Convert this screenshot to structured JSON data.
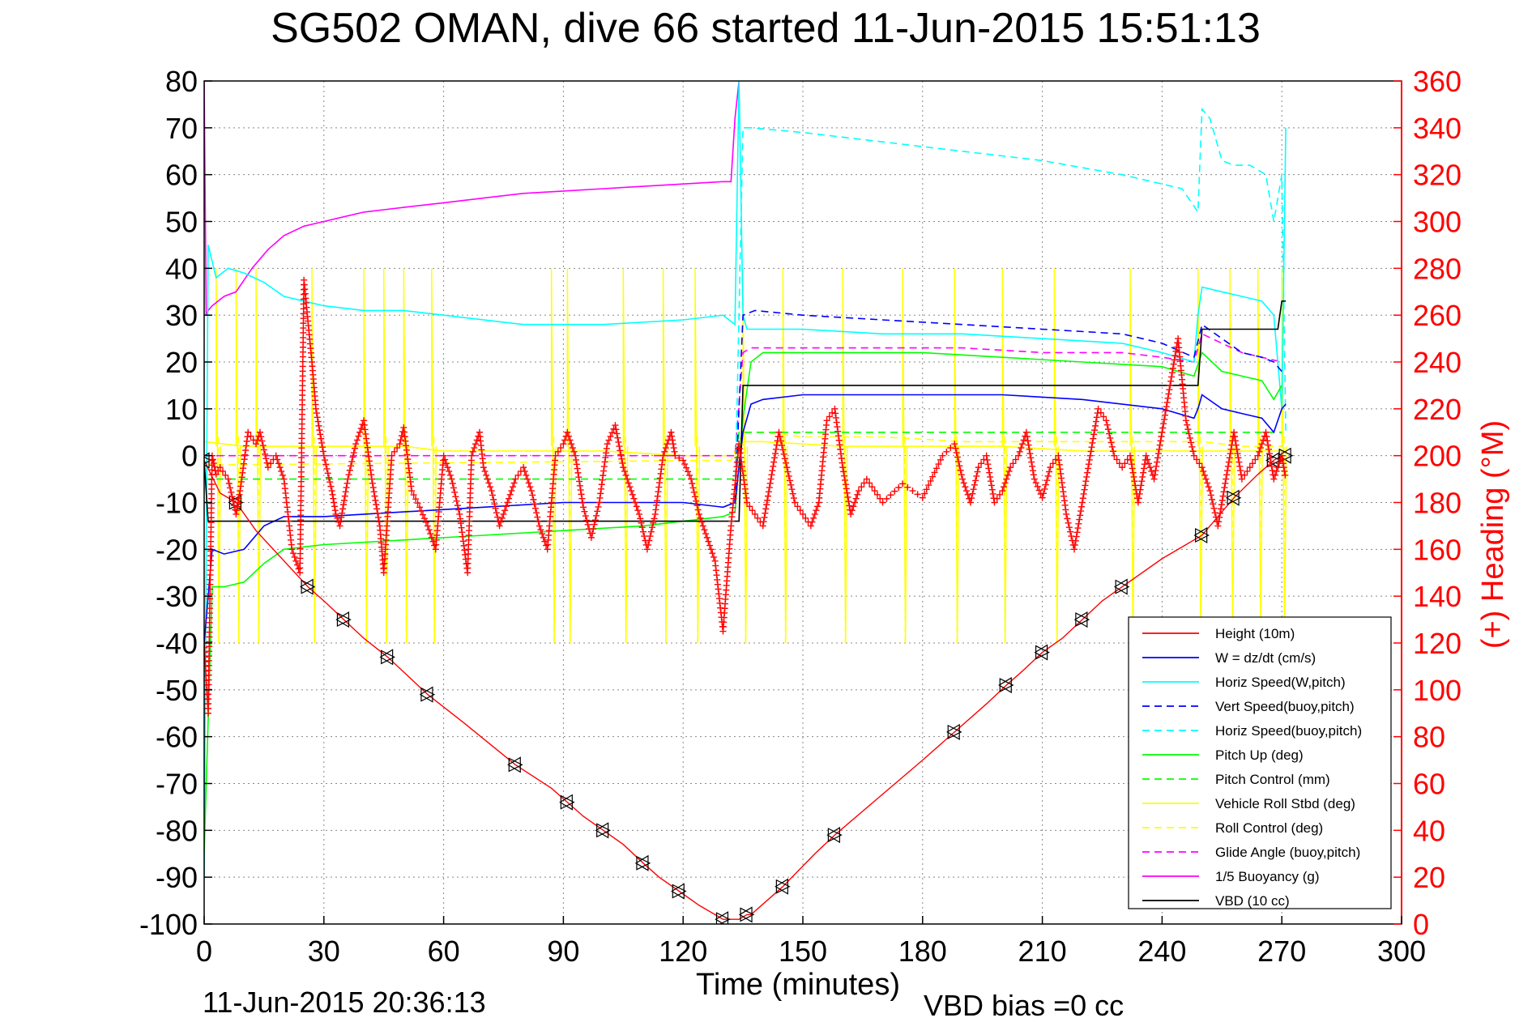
{
  "chart_data": {
    "type": "line",
    "title": "SG502 OMAN, dive 66 started 11-Jun-2015 15:51:13",
    "xlabel": "Time (minutes)",
    "ylabel_right": "(+) Heading (°M)",
    "footer_left": "11-Jun-2015 20:36:13",
    "footer_right": "VBD bias =0 cc",
    "xlim": [
      0,
      300
    ],
    "ylim": [
      -100,
      80
    ],
    "y2lim": [
      0,
      360
    ],
    "grid": true,
    "legend_position": "bottom-right",
    "x_ticks": [
      "0",
      "30",
      "60",
      "90",
      "120",
      "150",
      "180",
      "210",
      "240",
      "270",
      "300"
    ],
    "y_ticks": [
      "80",
      "70",
      "60",
      "50",
      "40",
      "30",
      "20",
      "10",
      "0",
      "-10",
      "-20",
      "-30",
      "-40",
      "-50",
      "-60",
      "-70",
      "-80",
      "-90",
      "-100"
    ],
    "y2_ticks": [
      "360",
      "340",
      "320",
      "300",
      "280",
      "260",
      "240",
      "220",
      "200",
      "180",
      "160",
      "140",
      "120",
      "100",
      "80",
      "60",
      "40",
      "20",
      "0"
    ],
    "colors": {
      "left_axis": "#000000",
      "right_axis": "#ff0000"
    },
    "legend": [
      {
        "name": "Height (10m)",
        "color": "#ff0000",
        "dash": "solid"
      },
      {
        "name": "W = dz/dt (cm/s)",
        "color": "#0000ff",
        "dash": "solid"
      },
      {
        "name": "Horiz Speed(W,pitch)",
        "color": "#00ffff",
        "dash": "solid"
      },
      {
        "name": "Vert Speed(buoy,pitch)",
        "color": "#0000ff",
        "dash": "dashed"
      },
      {
        "name": "Horiz Speed(buoy,pitch)",
        "color": "#00ffff",
        "dash": "dashed"
      },
      {
        "name": "Pitch Up (deg)",
        "color": "#00ff00",
        "dash": "solid"
      },
      {
        "name": "Pitch Control (mm)",
        "color": "#00ff00",
        "dash": "dashed"
      },
      {
        "name": "Vehicle Roll Stbd (deg)",
        "color": "#ffff00",
        "dash": "solid"
      },
      {
        "name": "Roll Control (deg)",
        "color": "#ffff00",
        "dash": "dashed"
      },
      {
        "name": "Glide Angle (buoy,pitch)",
        "color": "#ff00ff",
        "dash": "dashed"
      },
      {
        "name": "1/5 Buoyancy (g)",
        "color": "#ff00ff",
        "dash": "solid"
      },
      {
        "name": "VBD (10 cc)",
        "color": "#000000",
        "dash": "solid"
      }
    ],
    "series": [
      {
        "key": "height",
        "axis": "left",
        "color": "#ff0000",
        "dash": "solid",
        "marker": "triangle",
        "x": [
          0,
          4,
          8,
          13,
          26,
          30,
          35,
          40,
          46,
          51,
          56,
          65,
          78,
          87,
          91,
          95,
          100,
          105,
          110,
          114,
          119,
          124,
          130,
          134,
          136,
          137,
          145,
          153,
          158,
          180,
          188,
          196,
          201,
          205,
          210,
          215,
          220,
          225,
          230,
          240,
          250,
          251,
          258,
          264,
          268,
          270,
          271
        ],
        "y": [
          -1,
          -8,
          -10,
          -16,
          -28,
          -31,
          -35,
          -39,
          -43,
          -47,
          -51,
          -57,
          -66,
          -71,
          -74,
          -77,
          -80,
          -83,
          -87,
          -90,
          -93,
          -96,
          -99,
          -99,
          -98,
          -98,
          -92,
          -85,
          -81,
          -65,
          -59,
          -53,
          -49,
          -46,
          -42,
          -39,
          -35,
          -31,
          -28,
          -22,
          -17,
          -16,
          -9,
          -4,
          -1,
          0,
          0
        ]
      },
      {
        "key": "w",
        "axis": "left",
        "color": "#0000ff",
        "dash": "solid",
        "x": [
          0,
          2,
          5,
          10,
          15,
          20,
          30,
          50,
          70,
          90,
          110,
          120,
          130,
          133,
          135,
          137,
          140,
          150,
          160,
          180,
          200,
          220,
          240,
          248,
          249,
          250,
          255,
          260,
          265,
          268,
          270,
          271
        ],
        "y": [
          -40,
          -20,
          -21,
          -20,
          -15,
          -13,
          -13,
          -12,
          -11,
          -10,
          -10,
          -10,
          -11,
          -10,
          5,
          11,
          12,
          13,
          13,
          13,
          13,
          12,
          10,
          8,
          10,
          13,
          10,
          9,
          8,
          5,
          10,
          11
        ]
      },
      {
        "key": "horiz_w",
        "axis": "left",
        "color": "#00ffff",
        "dash": "solid",
        "x": [
          0,
          1,
          3,
          6,
          10,
          15,
          20,
          25,
          30,
          40,
          50,
          60,
          80,
          100,
          120,
          130,
          133,
          134,
          135,
          136,
          138,
          140,
          150,
          170,
          190,
          210,
          230,
          240,
          248,
          249,
          250,
          255,
          260,
          265,
          268,
          270,
          271
        ],
        "y": [
          -90,
          45,
          38,
          40,
          39,
          37,
          34,
          33,
          32,
          31,
          31,
          30,
          28,
          28,
          29,
          30,
          28,
          80,
          30,
          27,
          27,
          27,
          27,
          26,
          26,
          25,
          24,
          22,
          20,
          30,
          36,
          35,
          34,
          33,
          30,
          10,
          70
        ]
      },
      {
        "key": "vert_buoy",
        "axis": "left",
        "color": "#0000ff",
        "dash": "dashed",
        "x": [
          133,
          135,
          138,
          150,
          170,
          190,
          210,
          230,
          240,
          248,
          250,
          255,
          260,
          265,
          268,
          270
        ],
        "y": [
          -10,
          30,
          31,
          30,
          29,
          28,
          27,
          26,
          24,
          21,
          28,
          25,
          22,
          21,
          20,
          18
        ]
      },
      {
        "key": "horiz_buoy",
        "axis": "left",
        "color": "#00ffff",
        "dash": "dashed",
        "x": [
          133,
          135,
          137,
          150,
          170,
          190,
          210,
          230,
          245,
          249,
          250,
          252,
          255,
          258,
          262,
          266,
          268,
          270,
          271
        ],
        "y": [
          -10,
          70,
          70,
          69,
          67,
          65,
          63,
          60,
          57,
          52,
          74,
          72,
          63,
          62,
          62,
          60,
          50,
          60,
          5
        ]
      },
      {
        "key": "pitch_up",
        "axis": "left",
        "color": "#00ff00",
        "dash": "solid",
        "x": [
          0,
          2,
          5,
          10,
          15,
          20,
          30,
          50,
          70,
          90,
          110,
          120,
          130,
          133,
          135,
          137,
          140,
          160,
          180,
          200,
          220,
          240,
          248,
          250,
          255,
          260,
          265,
          268,
          270
        ],
        "y": [
          -85,
          -28,
          -28,
          -27,
          -23,
          -20,
          -19,
          -18,
          -17,
          -16,
          -15,
          -14,
          -13,
          -12,
          8,
          20,
          22,
          22,
          22,
          21,
          20,
          19,
          17,
          22,
          18,
          17,
          16,
          12,
          15
        ]
      },
      {
        "key": "pitch_ctrl",
        "axis": "left",
        "color": "#00ff00",
        "dash": "dashed",
        "x": [
          0,
          133,
          134,
          137,
          270
        ],
        "y": [
          -5,
          -5,
          5,
          5,
          5
        ]
      },
      {
        "key": "glide",
        "axis": "left",
        "color": "#ff00ff",
        "dash": "dashed",
        "x": [
          0,
          133,
          135,
          137,
          150,
          170,
          190,
          210,
          230,
          240,
          248,
          250,
          255,
          260,
          265,
          270
        ],
        "y": [
          0,
          0,
          22,
          23,
          23,
          23,
          23,
          22,
          22,
          21,
          20,
          26,
          24,
          22,
          21,
          20
        ]
      },
      {
        "key": "buoyancy",
        "axis": "left",
        "color": "#ff00ff",
        "dash": "solid",
        "x": [
          0,
          0.5,
          1,
          2,
          5,
          8,
          12,
          16,
          20,
          25,
          30,
          35,
          40,
          45,
          50,
          60,
          70,
          80,
          90,
          100,
          110,
          120,
          130,
          132,
          133,
          134
        ],
        "y": [
          80,
          30,
          31,
          32,
          34,
          35,
          40,
          44,
          47,
          49,
          50,
          51,
          52,
          52.5,
          53,
          54,
          55,
          56,
          56.5,
          57,
          57.5,
          58,
          58.5,
          58.5,
          72,
          80
        ]
      },
      {
        "key": "vbd",
        "axis": "left",
        "color": "#000000",
        "dash": "solid",
        "x": [
          0,
          1,
          133,
          134,
          135,
          136,
          248,
          249,
          250,
          251,
          268,
          269,
          270,
          271
        ],
        "y": [
          -1,
          -14,
          -14,
          -14,
          15,
          15,
          15,
          15,
          27,
          27,
          27,
          27,
          33,
          33
        ]
      },
      {
        "key": "roll_ctrl",
        "axis": "left",
        "color": "#ffff00",
        "dash": "dashed",
        "x": [
          0,
          130,
          132,
          135,
          140,
          150,
          170,
          190,
          210,
          230,
          250,
          260,
          270
        ],
        "y": [
          -2,
          -1,
          -1,
          5,
          5,
          4,
          4,
          3,
          3,
          3,
          3,
          2,
          2
        ]
      },
      {
        "key": "roll_stbd_base",
        "axis": "left",
        "color": "#ffff00",
        "dash": "solid",
        "x": [
          0,
          10,
          20,
          30,
          40,
          50,
          60,
          80,
          100,
          120,
          133,
          135,
          140,
          160,
          180,
          200,
          220,
          240,
          260,
          270
        ],
        "y": [
          3,
          2,
          2,
          2,
          2,
          2,
          1,
          1,
          1,
          0,
          0,
          3,
          3,
          2,
          2,
          2,
          1,
          1,
          1,
          1
        ]
      }
    ],
    "roll_spikes_x": [
      3,
      8,
      13,
      27,
      40,
      45,
      50,
      57,
      87,
      91,
      105,
      115,
      123,
      135,
      145,
      160,
      175,
      188,
      200,
      213,
      232,
      249,
      257,
      264,
      270
    ],
    "heading": {
      "axis": "right",
      "color": "#ff0000",
      "marker": "+",
      "x": [
        0,
        1,
        2,
        3,
        4,
        6,
        8,
        9,
        11,
        13,
        14,
        16,
        18,
        20,
        22,
        24,
        25,
        27,
        28,
        30,
        32,
        33,
        34,
        36,
        38,
        40,
        42,
        44,
        45,
        47,
        49,
        50,
        52,
        54,
        56,
        58,
        60,
        62,
        64,
        66,
        67,
        69,
        70,
        72,
        74,
        76,
        78,
        80,
        82,
        84,
        86,
        88,
        90,
        91,
        93,
        95,
        97,
        99,
        101,
        103,
        105,
        107,
        109,
        111,
        113,
        115,
        117,
        118,
        120,
        122,
        124,
        126,
        128,
        130,
        132,
        134,
        136,
        138,
        140,
        142,
        144,
        146,
        148,
        150,
        152,
        154,
        156,
        158,
        160,
        162,
        164,
        166,
        170,
        175,
        180,
        185,
        188,
        190,
        192,
        194,
        196,
        198,
        200,
        202,
        204,
        206,
        208,
        210,
        212,
        214,
        216,
        218,
        220,
        222,
        224,
        226,
        228,
        230,
        232,
        234,
        236,
        238,
        240,
        242,
        244,
        246,
        248,
        250,
        252,
        254,
        256,
        258,
        260,
        262,
        264,
        266,
        268,
        270,
        271
      ],
      "y": [
        120,
        90,
        200,
        192,
        195,
        190,
        175,
        185,
        210,
        205,
        210,
        195,
        200,
        190,
        160,
        150,
        275,
        240,
        220,
        200,
        185,
        175,
        170,
        190,
        205,
        215,
        190,
        170,
        150,
        200,
        205,
        212,
        185,
        178,
        170,
        160,
        200,
        190,
        175,
        150,
        200,
        210,
        195,
        185,
        170,
        180,
        190,
        195,
        185,
        170,
        160,
        200,
        205,
        210,
        200,
        178,
        165,
        180,
        205,
        213,
        195,
        185,
        175,
        160,
        175,
        200,
        210,
        200,
        198,
        190,
        175,
        165,
        155,
        125,
        170,
        205,
        180,
        175,
        170,
        190,
        210,
        195,
        180,
        175,
        170,
        180,
        215,
        220,
        195,
        175,
        185,
        190,
        180,
        188,
        182,
        200,
        205,
        190,
        180,
        195,
        200,
        180,
        185,
        195,
        200,
        210,
        190,
        182,
        195,
        200,
        175,
        160,
        180,
        200,
        220,
        215,
        200,
        195,
        200,
        180,
        200,
        190,
        210,
        230,
        250,
        215,
        200,
        195,
        185,
        170,
        190,
        210,
        190,
        195,
        200,
        210,
        190,
        200,
        190
      ]
    }
  }
}
